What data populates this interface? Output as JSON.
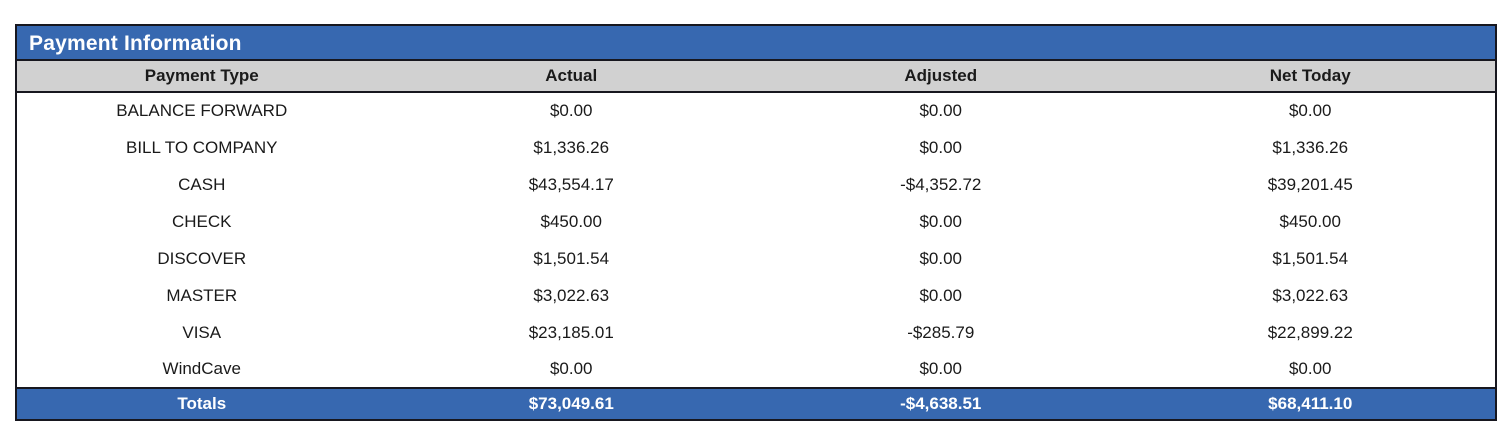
{
  "panel": {
    "title": "Payment Information"
  },
  "table": {
    "columns": [
      "Payment Type",
      "Actual",
      "Adjusted",
      "Net Today"
    ],
    "rows": [
      {
        "payment_type": "BALANCE FORWARD",
        "actual": "$0.00",
        "adjusted": "$0.00",
        "net_today": "$0.00"
      },
      {
        "payment_type": "BILL TO COMPANY",
        "actual": "$1,336.26",
        "adjusted": "$0.00",
        "net_today": "$1,336.26"
      },
      {
        "payment_type": "CASH",
        "actual": "$43,554.17",
        "adjusted": "-$4,352.72",
        "net_today": "$39,201.45"
      },
      {
        "payment_type": "CHECK",
        "actual": "$450.00",
        "adjusted": "$0.00",
        "net_today": "$450.00"
      },
      {
        "payment_type": "DISCOVER",
        "actual": "$1,501.54",
        "adjusted": "$0.00",
        "net_today": "$1,501.54"
      },
      {
        "payment_type": "MASTER",
        "actual": "$3,022.63",
        "adjusted": "$0.00",
        "net_today": "$3,022.63"
      },
      {
        "payment_type": "VISA",
        "actual": "$23,185.01",
        "adjusted": "-$285.79",
        "net_today": "$22,899.22"
      },
      {
        "payment_type": "WindCave",
        "actual": "$0.00",
        "adjusted": "$0.00",
        "net_today": "$0.00"
      }
    ],
    "totals": {
      "label": "Totals",
      "actual": "$73,049.61",
      "adjusted": "-$4,638.51",
      "net_today": "$68,411.10"
    }
  },
  "colors": {
    "accent_blue": "#3768B0",
    "header_gray": "#D1D1D1",
    "border_dark": "#17171F"
  }
}
